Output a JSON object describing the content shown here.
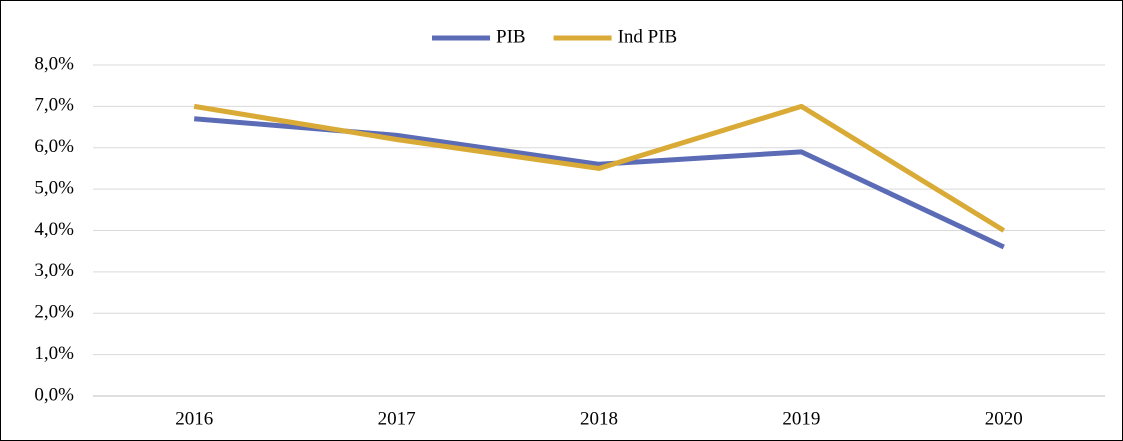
{
  "chart_data": {
    "type": "line",
    "categories": [
      "2016",
      "2017",
      "2018",
      "2019",
      "2020"
    ],
    "series": [
      {
        "name": "PIB",
        "color": "#5b6bb5",
        "values": [
          6.7,
          6.3,
          5.6,
          5.9,
          3.6
        ]
      },
      {
        "name": "Ind PIB",
        "color": "#d9aa35",
        "values": [
          7.0,
          6.2,
          5.5,
          7.0,
          4.0
        ]
      }
    ],
    "ylim": [
      0,
      8
    ],
    "yticks": [
      {
        "value": 0,
        "label": "0,0%"
      },
      {
        "value": 1,
        "label": "1,0%"
      },
      {
        "value": 2,
        "label": "2,0%"
      },
      {
        "value": 3,
        "label": "3,0%"
      },
      {
        "value": 4,
        "label": "4,0%"
      },
      {
        "value": 5,
        "label": "5,0%"
      },
      {
        "value": 6,
        "label": "6,0%"
      },
      {
        "value": 7,
        "label": "7,0%"
      },
      {
        "value": 8,
        "label": "8,0%"
      }
    ],
    "grid": true,
    "legend": "top"
  }
}
